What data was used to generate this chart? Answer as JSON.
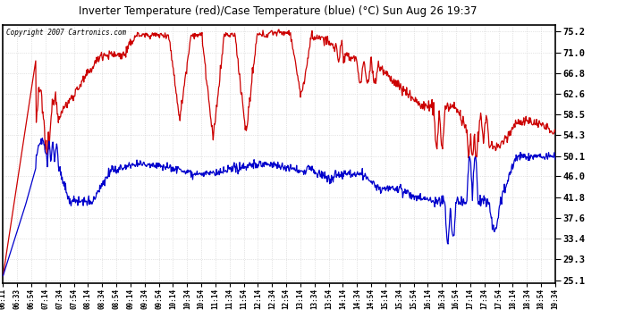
{
  "title": "Inverter Temperature (red)/Case Temperature (blue) (°C) Sun Aug 26 19:37",
  "copyright": "Copyright 2007 Cartronics.com",
  "y_ticks": [
    25.1,
    29.3,
    33.4,
    37.6,
    41.8,
    46.0,
    50.1,
    54.3,
    58.5,
    62.6,
    66.8,
    71.0,
    75.2
  ],
  "ylim": [
    24.5,
    76.5
  ],
  "plot_bg_color": "#ffffff",
  "outer_bg_color": "#ffffff",
  "grid_color": "#cccccc",
  "red_color": "#cc0000",
  "blue_color": "#0000cc",
  "x_labels": [
    "06:11",
    "06:33",
    "06:54",
    "07:14",
    "07:34",
    "07:54",
    "08:14",
    "08:34",
    "08:54",
    "09:14",
    "09:34",
    "09:54",
    "10:14",
    "10:34",
    "10:54",
    "11:14",
    "11:34",
    "11:54",
    "12:14",
    "12:34",
    "12:54",
    "13:14",
    "13:34",
    "13:54",
    "14:14",
    "14:34",
    "14:54",
    "15:14",
    "15:34",
    "15:54",
    "16:14",
    "16:34",
    "16:54",
    "17:14",
    "17:34",
    "17:54",
    "18:14",
    "18:34",
    "18:54",
    "19:34"
  ]
}
